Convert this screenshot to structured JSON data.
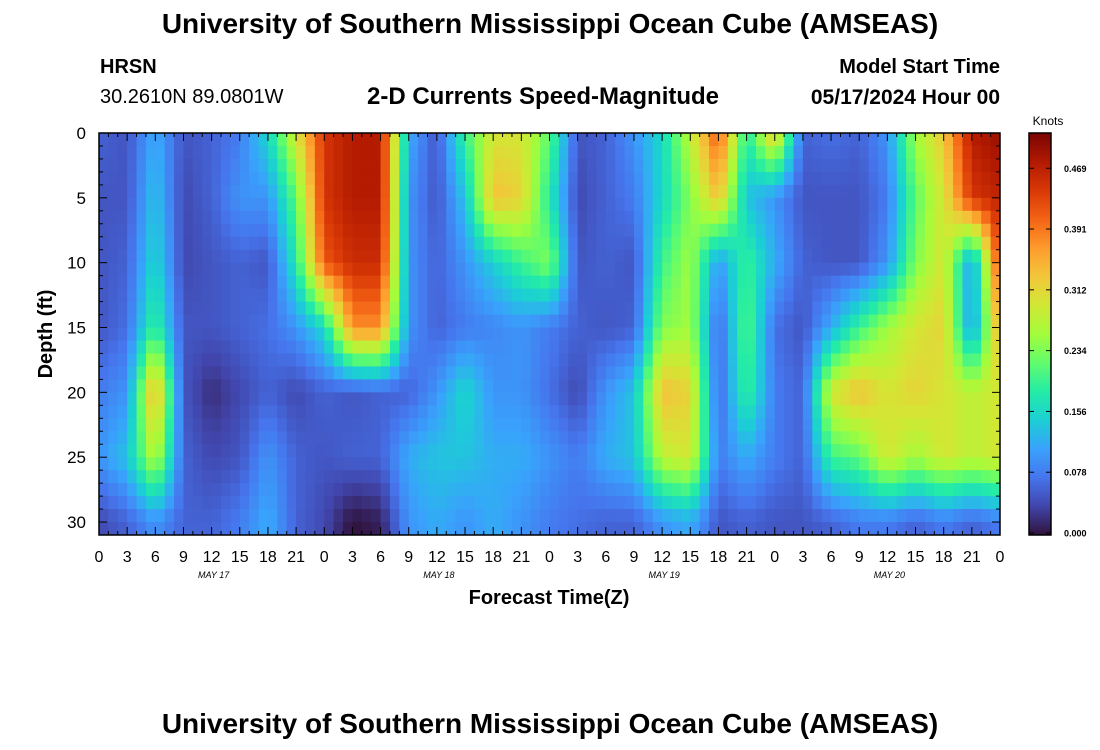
{
  "header": {
    "title": "University of Southern Mississippi Ocean Cube (AMSEAS)",
    "station": "HRSN",
    "coords": "30.2610N  89.0801W",
    "subtitle": "2-D Currents Speed-Magnitude",
    "model_start_label": "Model Start Time",
    "model_start_value": "05/17/2024 Hour 00"
  },
  "footer": {
    "title": "University of Southern Mississippi Ocean Cube (AMSEAS)"
  },
  "chart_data": {
    "type": "heatmap",
    "title": "2-D Currents Speed-Magnitude",
    "xlabel": "Forecast Time(Z)",
    "ylabel": "Depth (ft)",
    "x_tick_labels": [
      "0",
      "3",
      "6",
      "9",
      "12",
      "15",
      "18",
      "21",
      "0",
      "3",
      "6",
      "9",
      "12",
      "15",
      "18",
      "21",
      "0",
      "3",
      "6",
      "9",
      "12",
      "15",
      "18",
      "21",
      "0",
      "3",
      "6",
      "9",
      "12",
      "15",
      "18",
      "21",
      "0"
    ],
    "date_labels": [
      {
        "label": "MAY 17",
        "hour": 12
      },
      {
        "label": "MAY 18",
        "hour": 36
      },
      {
        "label": "MAY 19",
        "hour": 60
      },
      {
        "label": "MAY 20",
        "hour": 84
      }
    ],
    "x_range_hours": [
      0,
      96
    ],
    "ylim": [
      0,
      31
    ],
    "y_ticks": [
      0,
      5,
      10,
      15,
      20,
      25,
      30
    ],
    "colorbar": {
      "label": "Knots",
      "ticks": [
        "0.000",
        "0.078",
        "0.156",
        "0.234",
        "0.312",
        "0.391",
        "0.469"
      ],
      "range": [
        0,
        0.52
      ],
      "colors": [
        "#30123b",
        "#4145ab",
        "#4675ed",
        "#39a2fc",
        "#1bcfd4",
        "#24eca6",
        "#61fc6c",
        "#a4fc3b",
        "#d1e834",
        "#f3c63a",
        "#fe9b2d",
        "#f36315",
        "#d93806",
        "#b11901",
        "#7a0402"
      ]
    },
    "depths_ft": [
      0,
      5,
      10,
      15,
      20,
      25,
      30
    ],
    "hours": [
      0,
      3,
      6,
      9,
      12,
      15,
      18,
      21,
      24,
      27,
      30,
      33,
      36,
      39,
      42,
      45,
      48,
      51,
      54,
      57,
      60,
      63,
      66,
      69,
      72,
      75,
      78,
      81,
      84,
      87,
      90,
      93,
      96
    ],
    "speed_knots": [
      [
        0.06,
        0.05,
        0.12,
        0.05,
        0.06,
        0.08,
        0.16,
        0.3,
        0.45,
        0.48,
        0.48,
        0.12,
        0.05,
        0.2,
        0.3,
        0.3,
        0.22,
        0.05,
        0.06,
        0.1,
        0.16,
        0.28,
        0.42,
        0.18,
        0.34,
        0.06,
        0.07,
        0.06,
        0.1,
        0.26,
        0.33,
        0.48,
        0.5
      ],
      [
        0.05,
        0.05,
        0.14,
        0.04,
        0.06,
        0.1,
        0.1,
        0.22,
        0.45,
        0.48,
        0.48,
        0.1,
        0.05,
        0.14,
        0.34,
        0.32,
        0.18,
        0.04,
        0.06,
        0.08,
        0.16,
        0.24,
        0.34,
        0.14,
        0.1,
        0.05,
        0.05,
        0.05,
        0.08,
        0.22,
        0.3,
        0.45,
        0.47
      ],
      [
        0.05,
        0.06,
        0.16,
        0.04,
        0.05,
        0.06,
        0.05,
        0.18,
        0.42,
        0.46,
        0.46,
        0.1,
        0.06,
        0.1,
        0.15,
        0.2,
        0.24,
        0.05,
        0.06,
        0.05,
        0.2,
        0.26,
        0.1,
        0.2,
        0.12,
        0.06,
        0.05,
        0.05,
        0.1,
        0.24,
        0.3,
        0.1,
        0.44
      ],
      [
        0.05,
        0.07,
        0.2,
        0.05,
        0.05,
        0.06,
        0.07,
        0.1,
        0.16,
        0.38,
        0.38,
        0.1,
        0.06,
        0.08,
        0.09,
        0.1,
        0.08,
        0.06,
        0.05,
        0.06,
        0.24,
        0.26,
        0.06,
        0.22,
        0.07,
        0.05,
        0.12,
        0.2,
        0.26,
        0.3,
        0.32,
        0.1,
        0.36
      ],
      [
        0.08,
        0.1,
        0.36,
        0.05,
        0.02,
        0.04,
        0.06,
        0.04,
        0.06,
        0.05,
        0.06,
        0.06,
        0.1,
        0.16,
        0.1,
        0.1,
        0.07,
        0.04,
        0.1,
        0.14,
        0.34,
        0.32,
        0.06,
        0.2,
        0.08,
        0.06,
        0.3,
        0.34,
        0.3,
        0.32,
        0.3,
        0.28,
        0.3
      ],
      [
        0.1,
        0.14,
        0.28,
        0.06,
        0.04,
        0.05,
        0.1,
        0.06,
        0.05,
        0.06,
        0.06,
        0.12,
        0.14,
        0.14,
        0.12,
        0.12,
        0.1,
        0.08,
        0.12,
        0.14,
        0.28,
        0.3,
        0.08,
        0.12,
        0.08,
        0.06,
        0.2,
        0.22,
        0.3,
        0.26,
        0.3,
        0.28,
        0.3
      ],
      [
        0.04,
        0.06,
        0.1,
        0.06,
        0.06,
        0.08,
        0.12,
        0.06,
        0.04,
        0.0,
        0.01,
        0.1,
        0.12,
        0.1,
        0.12,
        0.1,
        0.08,
        0.07,
        0.06,
        0.06,
        0.1,
        0.12,
        0.05,
        0.06,
        0.05,
        0.05,
        0.06,
        0.08,
        0.08,
        0.06,
        0.08,
        0.06,
        0.08
      ]
    ]
  }
}
